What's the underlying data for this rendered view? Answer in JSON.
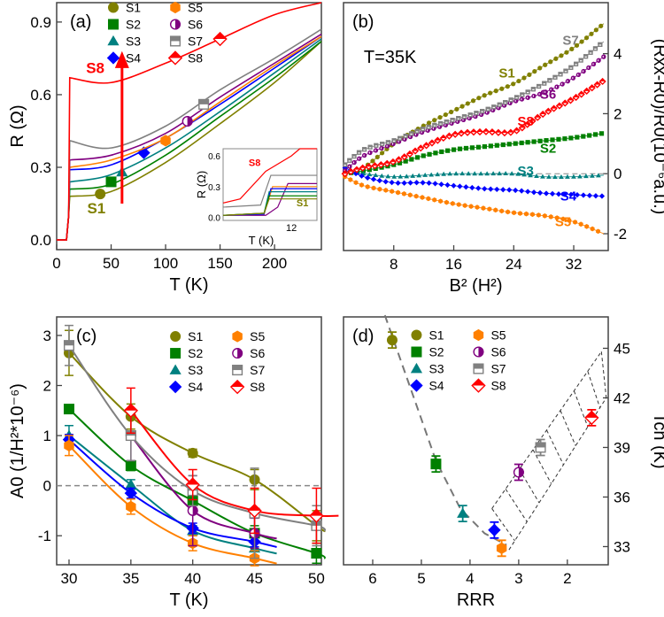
{
  "colors": {
    "S1": "#808000",
    "S2": "#008000",
    "S3": "#008080",
    "S4": "#0000ff",
    "S5": "#ff8000",
    "S6": "#800080",
    "S7": "#808080",
    "S8": "#ff0000"
  },
  "legend": [
    "S1",
    "S2",
    "S3",
    "S4",
    "S5",
    "S6",
    "S7",
    "S8"
  ],
  "chart_data": [
    {
      "panel": "(a)",
      "type": "line",
      "xlabel": "T (K)",
      "ylabel": "R (Ω)",
      "xlim": [
        0,
        243
      ],
      "ylim": [
        -0.04,
        0.98
      ],
      "xticks": [
        "0",
        "50",
        "100",
        "150",
        "200"
      ],
      "yticks": [
        "0.0",
        "0.3",
        "0.6",
        "0.9"
      ],
      "x": [
        12,
        50,
        100,
        150,
        200,
        243
      ],
      "series": [
        {
          "name": "S1",
          "values": [
            0.18,
            0.2,
            0.32,
            0.48,
            0.65,
            0.82
          ],
          "marker": [
            40,
            0.19
          ]
        },
        {
          "name": "S2",
          "values": [
            0.21,
            0.23,
            0.35,
            0.51,
            0.67,
            0.82
          ],
          "marker": [
            50,
            0.24
          ]
        },
        {
          "name": "S3",
          "values": [
            0.24,
            0.27,
            0.38,
            0.53,
            0.69,
            0.83
          ],
          "marker": [
            60,
            0.28
          ]
        },
        {
          "name": "S4",
          "values": [
            0.29,
            0.31,
            0.42,
            0.56,
            0.71,
            0.84
          ],
          "marker": [
            80,
            0.36
          ]
        },
        {
          "name": "S5",
          "values": [
            0.3,
            0.33,
            0.42,
            0.57,
            0.72,
            0.84
          ],
          "marker": [
            100,
            0.41
          ]
        },
        {
          "name": "S6",
          "values": [
            0.33,
            0.35,
            0.44,
            0.59,
            0.73,
            0.85
          ],
          "marker": [
            120,
            0.49
          ]
        },
        {
          "name": "S7",
          "values": [
            0.41,
            0.38,
            0.47,
            0.62,
            0.75,
            0.87
          ],
          "marker": [
            135,
            0.56
          ]
        },
        {
          "name": "S8",
          "values": [
            0.67,
            0.65,
            0.73,
            0.83,
            0.93,
            0.98
          ],
          "marker": [
            150,
            0.83
          ]
        }
      ],
      "annotations": [
        "S8",
        "S1"
      ],
      "inset": {
        "xlabel": "T (K)",
        "ylabel": "R (Ω)",
        "xticks": [
          "12"
        ],
        "yticks": [
          "0.0",
          "0.3",
          "0.6"
        ],
        "labels": [
          "S8",
          "S1"
        ]
      }
    },
    {
      "panel": "(b)",
      "type": "scatter",
      "xlabel": "B² (H²)",
      "ylabel": "(Rxx-R0)/R0(10⁻⁶a.u.)",
      "annotation": "T=35K",
      "xlim": [
        1.3,
        36.6
      ],
      "ylim": [
        -2.56,
        5.7
      ],
      "xticks": [
        "8",
        "16",
        "24",
        "32"
      ],
      "yticks": [
        "-2",
        "0",
        "2",
        "4"
      ],
      "x": [
        1.5,
        4,
        8,
        12,
        16,
        20,
        24,
        28,
        32,
        36
      ],
      "series": [
        {
          "name": "S1",
          "values": [
            0,
            0.2,
            1.0,
            1.6,
            2.1,
            2.6,
            3.0,
            3.6,
            4.2,
            5.0
          ]
        },
        {
          "name": "S2",
          "values": [
            0,
            0.1,
            0.3,
            0.6,
            0.8,
            0.9,
            1.0,
            1.1,
            1.2,
            1.35
          ]
        },
        {
          "name": "S3",
          "values": [
            0.1,
            0,
            -0.1,
            -0.05,
            0,
            0,
            0,
            -0.1,
            -0.1,
            -0.05
          ]
        },
        {
          "name": "S4",
          "values": [
            0.2,
            -0.1,
            -0.3,
            -0.3,
            -0.4,
            -0.5,
            -0.55,
            -0.65,
            -0.7,
            -0.75
          ]
        },
        {
          "name": "S5",
          "values": [
            -0.1,
            -0.4,
            -0.6,
            -0.8,
            -1.0,
            -1.15,
            -1.3,
            -1.4,
            -1.6,
            -2.0
          ]
        },
        {
          "name": "S6",
          "values": [
            0.1,
            0.6,
            1.0,
            1.4,
            1.7,
            2.0,
            2.4,
            2.7,
            3.2,
            3.9
          ]
        },
        {
          "name": "S7",
          "values": [
            0.3,
            0.8,
            1.1,
            1.5,
            1.8,
            2.1,
            2.5,
            3.0,
            3.6,
            4.4
          ]
        },
        {
          "name": "S8",
          "values": [
            0,
            0.2,
            0.4,
            0.9,
            1.3,
            1.4,
            1.4,
            2.0,
            2.5,
            3.1
          ]
        }
      ]
    },
    {
      "panel": "(c)",
      "type": "scatter",
      "xlabel": "T (K)",
      "ylabel": "A0 (1/H²*10⁻⁶)",
      "xlim": [
        29,
        50.4
      ],
      "ylim": [
        -1.58,
        3.37
      ],
      "xticks": [
        "30",
        "35",
        "40",
        "45",
        "50"
      ],
      "yticks": [
        "-1",
        "0",
        "1",
        "2",
        "3"
      ],
      "series": [
        {
          "name": "S1",
          "x": [
            30,
            35,
            40,
            45,
            50
          ],
          "values": [
            2.65,
            1.38,
            0.65,
            0.12,
            -0.8
          ],
          "err": [
            0.45,
            0.25,
            0.08,
            0.2,
            0.3
          ]
        },
        {
          "name": "S2",
          "x": [
            30,
            35,
            40,
            45,
            50
          ],
          "values": [
            1.53,
            0.4,
            -0.3,
            -0.95,
            -1.35
          ],
          "err": [
            0.05,
            0.1,
            0.1,
            0.15,
            0.2
          ]
        },
        {
          "name": "S3",
          "x": [
            30,
            35,
            40,
            45
          ],
          "values": [
            1.0,
            0.02,
            -0.9,
            -1.25
          ],
          "err": [
            0.2,
            0.1,
            0.1,
            0.15
          ]
        },
        {
          "name": "S4",
          "x": [
            30,
            35,
            40,
            45
          ],
          "values": [
            0.92,
            -0.15,
            -0.85,
            -1.12
          ],
          "err": [
            0.1,
            0.1,
            0.1,
            0.1
          ]
        },
        {
          "name": "S5",
          "x": [
            30,
            35,
            40,
            45
          ],
          "values": [
            0.8,
            -0.42,
            -1.15,
            -1.45
          ],
          "err": [
            0.2,
            0.15,
            0.15,
            0.15
          ]
        },
        {
          "name": "S6",
          "x": [
            35,
            40,
            45
          ],
          "values": [
            1.0,
            -0.5,
            -0.95
          ],
          "err": [
            0.5,
            0.7,
            0.3
          ]
        },
        {
          "name": "S7",
          "x": [
            30,
            35,
            40,
            45,
            50
          ],
          "values": [
            2.8,
            1.0,
            -0.1,
            -0.55,
            -0.8
          ],
          "err": [
            0.4,
            0.5,
            0.3,
            0.9,
            0.4
          ]
        },
        {
          "name": "S8",
          "x": [
            35,
            40,
            45,
            50
          ],
          "values": [
            1.5,
            0.02,
            -0.5,
            -0.6
          ],
          "err": [
            0.45,
            0.3,
            0.45,
            0.55
          ]
        }
      ],
      "reference_line": 0
    },
    {
      "panel": "(d)",
      "type": "scatter",
      "xlabel": "RRR",
      "ylabel": "Tch (K)",
      "xlim": [
        6.6,
        1.16
      ],
      "ylim": [
        31.9,
        46.9
      ],
      "xticks": [
        "6",
        "5",
        "4",
        "3",
        "2"
      ],
      "yticks": [
        "33",
        "36",
        "39",
        "42",
        "45"
      ],
      "series": [
        {
          "name": "S1",
          "x": [
            5.6
          ],
          "values": [
            45.5
          ]
        },
        {
          "name": "S2",
          "x": [
            4.7
          ],
          "values": [
            38
          ]
        },
        {
          "name": "S3",
          "x": [
            4.15
          ],
          "values": [
            35
          ]
        },
        {
          "name": "S4",
          "x": [
            3.5
          ],
          "values": [
            34
          ]
        },
        {
          "name": "S5",
          "x": [
            3.35
          ],
          "values": [
            32.9
          ]
        },
        {
          "name": "S6",
          "x": [
            3.0
          ],
          "values": [
            37.5
          ]
        },
        {
          "name": "S7",
          "x": [
            2.55
          ],
          "values": [
            39
          ]
        },
        {
          "name": "S8",
          "x": [
            1.5
          ],
          "values": [
            40.8
          ]
        }
      ],
      "trend": [
        [
          5.75,
          47
        ],
        [
          4.7,
          38.2
        ],
        [
          4.2,
          35.3
        ],
        [
          3.7,
          33.8
        ],
        [
          3.25,
          33.1
        ]
      ],
      "band_upper": [
        [
          3.55,
          35.3
        ],
        [
          1.3,
          44.8
        ]
      ],
      "band_lower": [
        [
          3.2,
          32.8
        ],
        [
          1.2,
          42
        ]
      ]
    }
  ]
}
